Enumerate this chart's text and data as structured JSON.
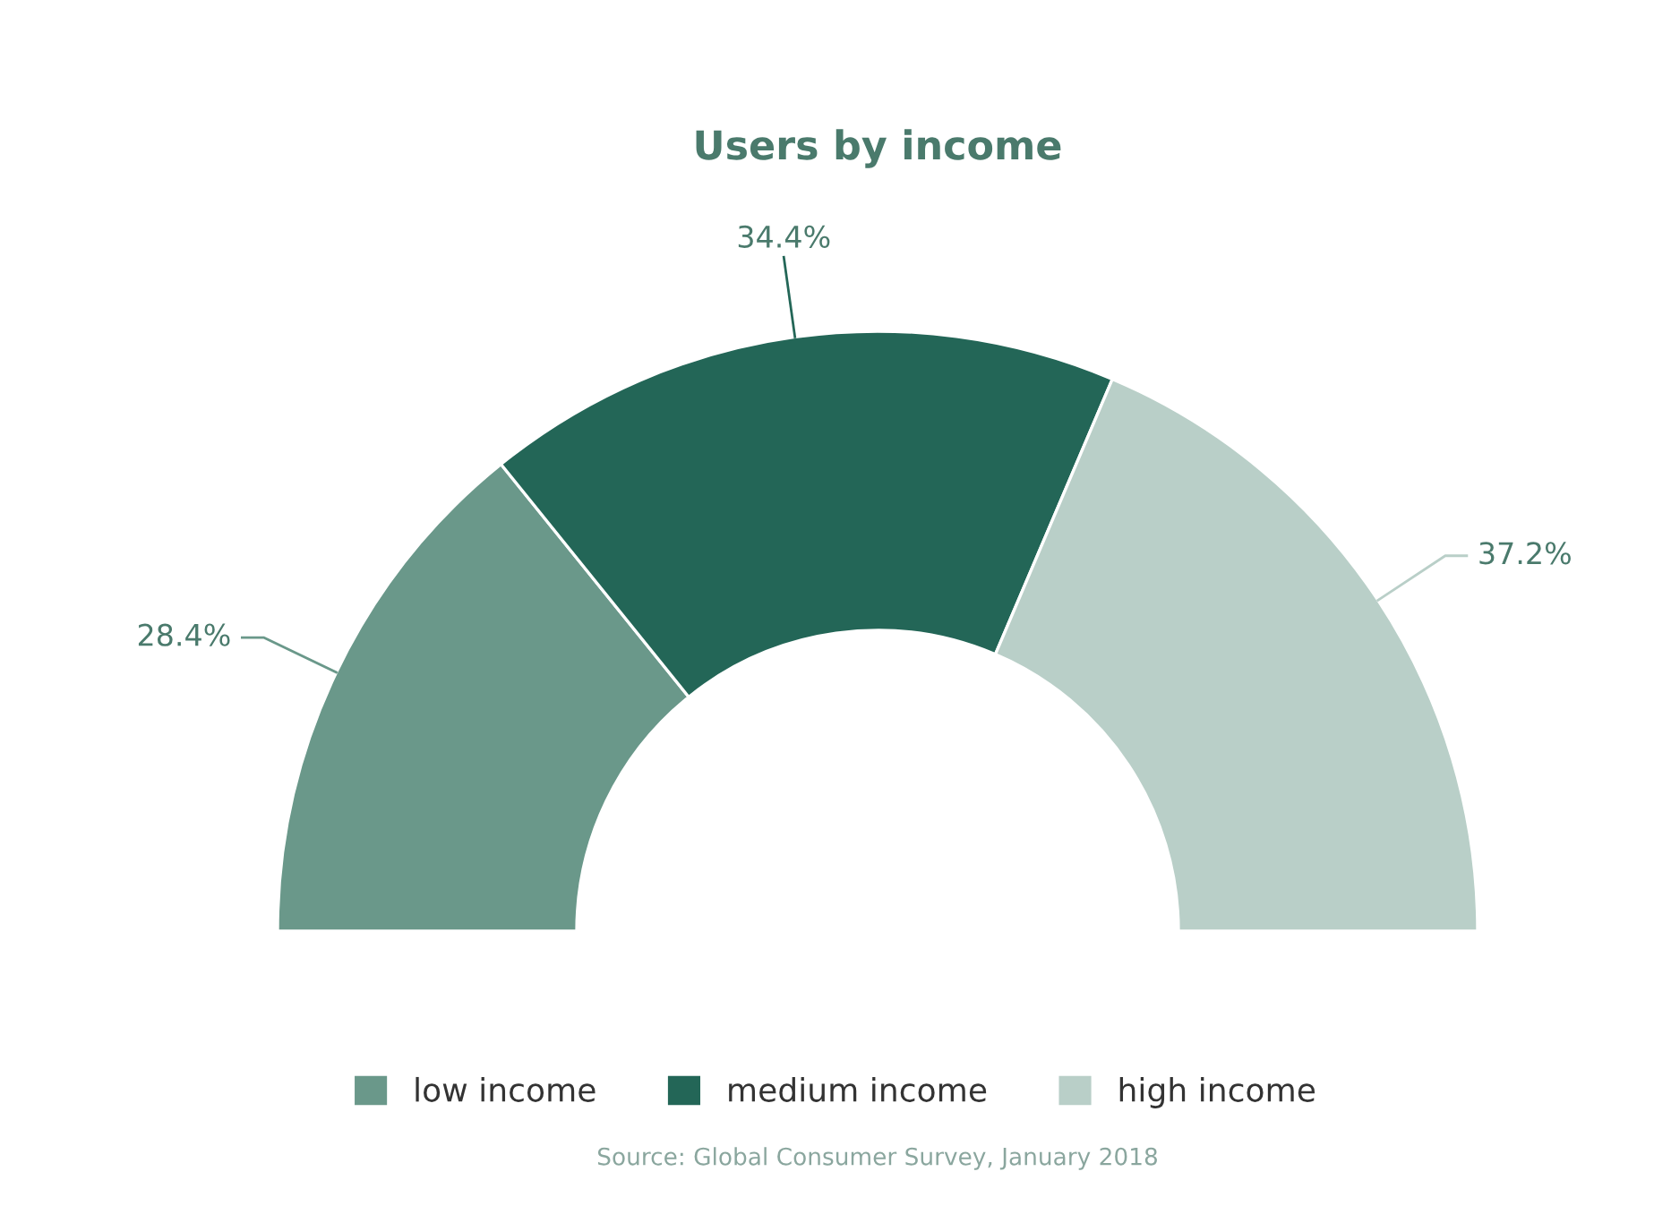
{
  "chart_data": {
    "type": "donut",
    "title": "Users by income",
    "categories": [
      "low income",
      "medium income",
      "high income"
    ],
    "values": [
      28.4,
      34.4,
      37.2
    ],
    "colors": [
      "#6a988a",
      "#236657",
      "#b9cfc8"
    ],
    "value_labels": [
      "28.4%",
      "34.4%",
      "37.2%"
    ],
    "legend": "bottom",
    "annotations": [
      "Source: Global Consumer Survey, January 2018"
    ]
  }
}
